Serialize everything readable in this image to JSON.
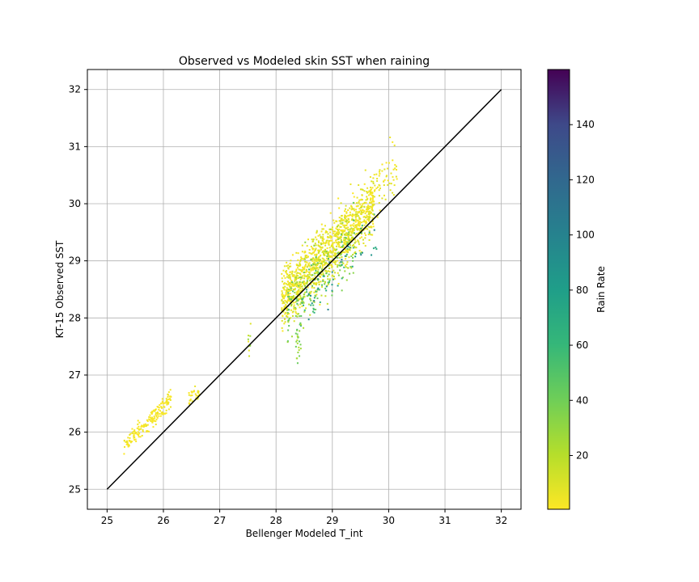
{
  "chart_data": {
    "type": "scatter",
    "title": "Observed vs Modeled skin SST when raining",
    "xlabel": "Bellenger Modeled T_int",
    "ylabel": "KT-15 Observed SST",
    "xlim": [
      24.65,
      32.35
    ],
    "ylim": [
      24.65,
      32.35
    ],
    "x_ticks": [
      "25",
      "26",
      "27",
      "28",
      "29",
      "30",
      "31",
      "32"
    ],
    "y_ticks": [
      "25",
      "26",
      "27",
      "28",
      "29",
      "30",
      "31",
      "32"
    ],
    "grid": true,
    "colormap": "viridis_r",
    "colorbar": {
      "label": "Rain Rate",
      "range": [
        0.5,
        160
      ],
      "ticks": [
        "20",
        "40",
        "60",
        "80",
        "100",
        "120",
        "140"
      ]
    },
    "reference_line": {
      "x": [
        25,
        32
      ],
      "y": [
        25,
        32
      ],
      "color": "#000000"
    },
    "clusters": [
      {
        "x_range": [
          25.3,
          26.15
        ],
        "y_center_offset": 0.45,
        "spread": 0.08,
        "rain_range": [
          0.5,
          6
        ],
        "count": 180
      },
      {
        "x_range": [
          26.45,
          26.65
        ],
        "y_center_offset": 0.1,
        "spread": 0.08,
        "rain_range": [
          0.5,
          8
        ],
        "count": 30
      },
      {
        "x_range": [
          27.5,
          27.55
        ],
        "y_center_offset": 0.05,
        "spread": 0.15,
        "rain_range": [
          5,
          35
        ],
        "count": 10
      },
      {
        "x_range": [
          28.1,
          29.75
        ],
        "y_center_offset": 0.25,
        "spread": 0.25,
        "rain_range": [
          0.5,
          14
        ],
        "count": 1200
      },
      {
        "x_range": [
          28.2,
          29.4
        ],
        "y_center_offset": -0.05,
        "spread": 0.3,
        "rain_range": [
          15,
          55
        ],
        "count": 230
      },
      {
        "x_range": [
          28.4,
          29.9
        ],
        "y_center_offset": -0.25,
        "spread": 0.2,
        "rain_range": [
          55,
          110
        ],
        "count": 60
      },
      {
        "x_range": [
          29.7,
          30.15
        ],
        "y_center_offset": 0.5,
        "spread": 0.25,
        "rain_range": [
          0.5,
          10
        ],
        "count": 60
      },
      {
        "x_range": [
          28.35,
          28.45
        ],
        "y_center_offset": -0.75,
        "spread": 0.2,
        "rain_range": [
          20,
          50
        ],
        "count": 25
      }
    ],
    "colors": {
      "low": "#fde725",
      "high": "#440154",
      "reference_line": "#000000",
      "grid": "#b0b0b0"
    }
  }
}
